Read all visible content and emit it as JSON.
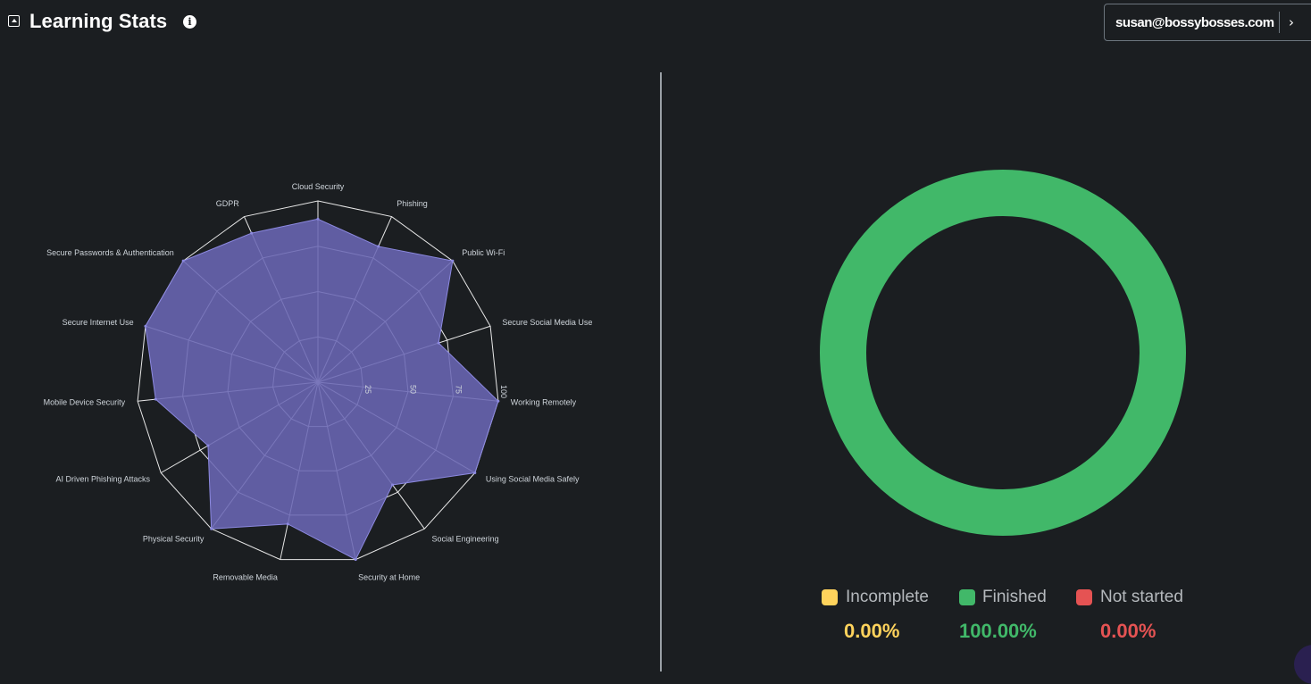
{
  "header": {
    "title": "Learning Stats",
    "user_email": "susan@bossybosses.com"
  },
  "colors": {
    "radar_fill": "#6a67b4",
    "radar_stroke": "#8c89e0",
    "grid": "#e8e8e8",
    "finished": "#41b869",
    "incomplete": "#ffd35c",
    "not_started": "#e55353"
  },
  "chart_data": [
    {
      "type": "radar",
      "categories": [
        "Cloud Security",
        "Phishing",
        "Public Wi-Fi",
        "Secure Social Media Use",
        "Working Remotely",
        "Using Social Media Safely",
        "Social Engineering",
        "Security at Home",
        "Removable Media",
        "Physical Security",
        "AI Driven Phishing Attacks",
        "Mobile Device Security",
        "Secure Internet Use",
        "Secure Passwords & Authentication",
        "GDPR"
      ],
      "values": [
        90,
        82,
        100,
        70,
        100,
        100,
        70,
        100,
        80,
        100,
        70,
        90,
        100,
        100,
        90
      ],
      "ticks": [
        "25",
        "50",
        "75",
        "100"
      ],
      "range": [
        0,
        100
      ],
      "grid": true
    },
    {
      "type": "pie",
      "variant": "doughnut",
      "slices": [
        {
          "label": "Incomplete",
          "value": 0,
          "value_text": "0.00%",
          "color": "#ffd35c"
        },
        {
          "label": "Finished",
          "value": 100,
          "value_text": "100.00%",
          "color": "#41b869"
        },
        {
          "label": "Not started",
          "value": 0,
          "value_text": "0.00%",
          "color": "#e55353"
        }
      ],
      "legend_position": "bottom"
    }
  ]
}
